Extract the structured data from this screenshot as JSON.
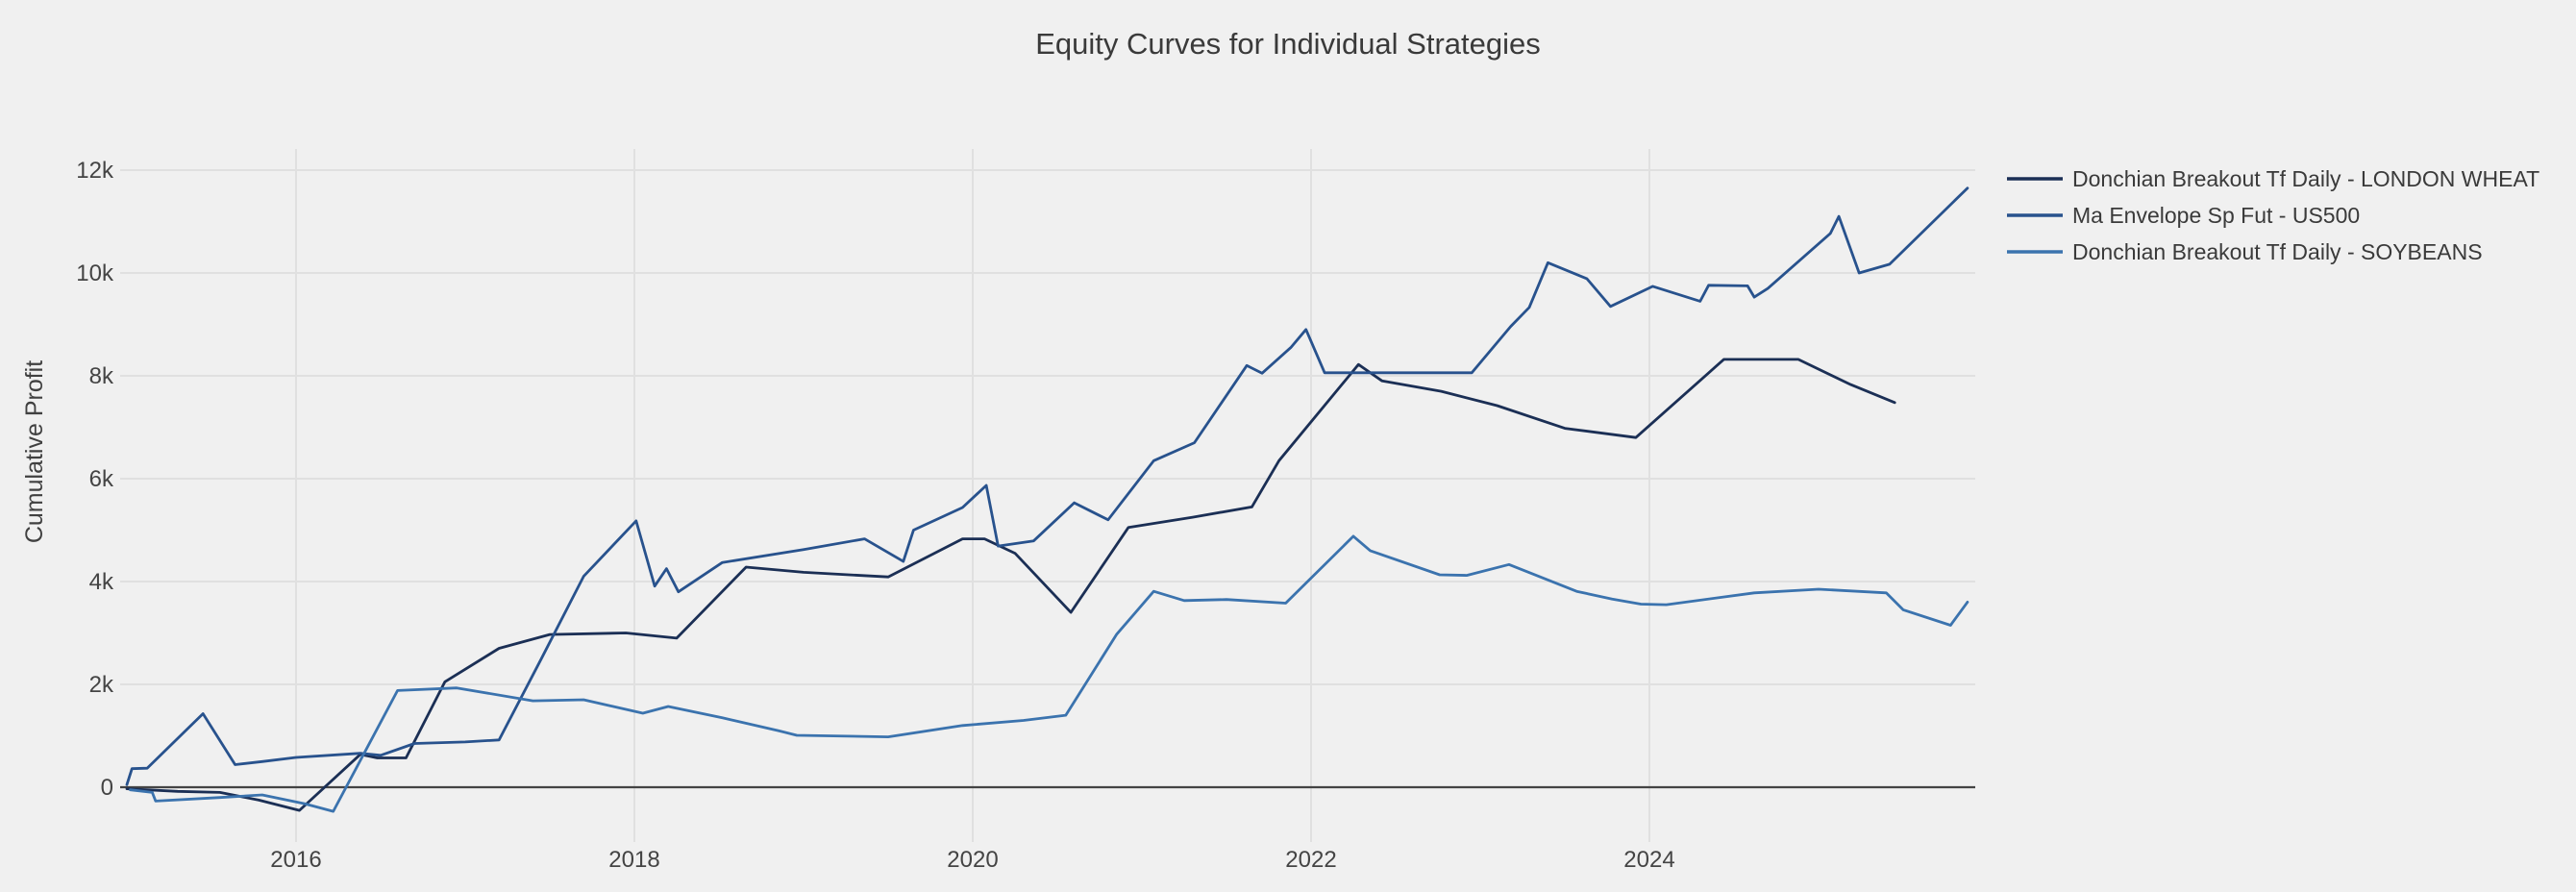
{
  "chart_data": {
    "type": "line",
    "title": "Equity Curves for Individual Strategies",
    "xlabel": "",
    "ylabel": "Cumulative Profit",
    "y_unit": "k",
    "x_range": [
      2014.96,
      2025.93
    ],
    "y_range_k": [
      -0.65,
      13.65
    ],
    "grid": "on",
    "legend_position": "top-right-outside",
    "background_color": "#F0F0F0",
    "gridline_color": "#E0E0E0",
    "zeroline_color": "#444444",
    "series": [
      {
        "id": "wheat",
        "name": "Donchian Breakout Tf Daily - LONDON WHEAT",
        "color": "#1B2F55",
        "points": [
          [
            2015.0,
            -0.03
          ],
          [
            2015.3,
            -0.08
          ],
          [
            2015.55,
            -0.1
          ],
          [
            2015.78,
            -0.25
          ],
          [
            2016.02,
            -0.45
          ],
          [
            2016.38,
            0.64
          ],
          [
            2016.48,
            0.57
          ],
          [
            2016.65,
            0.57
          ],
          [
            2016.88,
            2.05
          ],
          [
            2017.2,
            2.7
          ],
          [
            2017.5,
            2.97
          ],
          [
            2017.95,
            3.0
          ],
          [
            2018.25,
            2.9
          ],
          [
            2018.66,
            4.28
          ],
          [
            2019.0,
            4.18
          ],
          [
            2019.5,
            4.09
          ],
          [
            2019.94,
            4.83
          ],
          [
            2020.07,
            4.83
          ],
          [
            2020.25,
            4.55
          ],
          [
            2020.58,
            3.4
          ],
          [
            2020.92,
            5.05
          ],
          [
            2021.3,
            5.25
          ],
          [
            2021.65,
            5.45
          ],
          [
            2021.81,
            6.35
          ],
          [
            2022.28,
            8.22
          ],
          [
            2022.42,
            7.9
          ],
          [
            2022.77,
            7.7
          ],
          [
            2023.1,
            7.42
          ],
          [
            2023.5,
            6.98
          ],
          [
            2023.92,
            6.8
          ],
          [
            2024.44,
            8.32
          ],
          [
            2024.88,
            8.32
          ],
          [
            2025.19,
            7.83
          ],
          [
            2025.45,
            7.48
          ]
        ]
      },
      {
        "id": "us500",
        "name": "Ma Envelope Sp Fut - US500",
        "color": "#28528D",
        "points": [
          [
            2015.0,
            0.05
          ],
          [
            2015.03,
            0.36
          ],
          [
            2015.12,
            0.37
          ],
          [
            2015.45,
            1.43
          ],
          [
            2015.64,
            0.44
          ],
          [
            2015.8,
            0.5
          ],
          [
            2016.0,
            0.58
          ],
          [
            2016.38,
            0.66
          ],
          [
            2016.5,
            0.62
          ],
          [
            2016.7,
            0.85
          ],
          [
            2017.0,
            0.88
          ],
          [
            2017.2,
            0.92
          ],
          [
            2017.45,
            2.5
          ],
          [
            2017.7,
            4.1
          ],
          [
            2018.01,
            5.18
          ],
          [
            2018.12,
            3.91
          ],
          [
            2018.19,
            4.25
          ],
          [
            2018.26,
            3.8
          ],
          [
            2018.52,
            4.37
          ],
          [
            2019.0,
            4.62
          ],
          [
            2019.36,
            4.83
          ],
          [
            2019.59,
            4.39
          ],
          [
            2019.65,
            5.0
          ],
          [
            2019.94,
            5.44
          ],
          [
            2020.08,
            5.87
          ],
          [
            2020.15,
            4.69
          ],
          [
            2020.36,
            4.79
          ],
          [
            2020.6,
            5.53
          ],
          [
            2020.8,
            5.2
          ],
          [
            2021.07,
            6.35
          ],
          [
            2021.31,
            6.7
          ],
          [
            2021.62,
            8.2
          ],
          [
            2021.71,
            8.05
          ],
          [
            2021.88,
            8.55
          ],
          [
            2021.97,
            8.9
          ],
          [
            2022.08,
            8.06
          ],
          [
            2022.95,
            8.06
          ],
          [
            2023.18,
            8.96
          ],
          [
            2023.29,
            9.33
          ],
          [
            2023.4,
            10.2
          ],
          [
            2023.63,
            9.89
          ],
          [
            2023.77,
            9.35
          ],
          [
            2024.02,
            9.74
          ],
          [
            2024.3,
            9.45
          ],
          [
            2024.35,
            9.76
          ],
          [
            2024.58,
            9.75
          ],
          [
            2024.62,
            9.53
          ],
          [
            2024.7,
            9.7
          ],
          [
            2025.07,
            10.77
          ],
          [
            2025.12,
            11.1
          ],
          [
            2025.24,
            10.0
          ],
          [
            2025.42,
            10.17
          ],
          [
            2025.88,
            11.65
          ]
        ]
      },
      {
        "id": "soybeans",
        "name": "Donchian Breakout Tf Daily - SOYBEANS",
        "color": "#3B73AE",
        "points": [
          [
            2015.02,
            -0.05
          ],
          [
            2015.15,
            -0.1
          ],
          [
            2015.17,
            -0.27
          ],
          [
            2015.55,
            -0.2
          ],
          [
            2015.8,
            -0.15
          ],
          [
            2016.05,
            -0.32
          ],
          [
            2016.22,
            -0.47
          ],
          [
            2016.6,
            1.88
          ],
          [
            2016.95,
            1.93
          ],
          [
            2017.4,
            1.68
          ],
          [
            2017.7,
            1.7
          ],
          [
            2018.05,
            1.44
          ],
          [
            2018.2,
            1.57
          ],
          [
            2018.52,
            1.35
          ],
          [
            2018.85,
            1.1
          ],
          [
            2018.96,
            1.01
          ],
          [
            2019.5,
            0.98
          ],
          [
            2019.94,
            1.2
          ],
          [
            2020.3,
            1.3
          ],
          [
            2020.55,
            1.4
          ],
          [
            2020.85,
            2.97
          ],
          [
            2021.07,
            3.81
          ],
          [
            2021.25,
            3.63
          ],
          [
            2021.5,
            3.65
          ],
          [
            2021.85,
            3.58
          ],
          [
            2022.25,
            4.88
          ],
          [
            2022.35,
            4.6
          ],
          [
            2022.76,
            4.13
          ],
          [
            2022.92,
            4.12
          ],
          [
            2023.17,
            4.33
          ],
          [
            2023.57,
            3.81
          ],
          [
            2023.78,
            3.66
          ],
          [
            2023.95,
            3.56
          ],
          [
            2024.1,
            3.55
          ],
          [
            2024.62,
            3.78
          ],
          [
            2025.0,
            3.85
          ],
          [
            2025.4,
            3.78
          ],
          [
            2025.5,
            3.45
          ],
          [
            2025.78,
            3.15
          ],
          [
            2025.88,
            3.6
          ]
        ]
      }
    ]
  },
  "axes": {
    "y_ticks": [
      {
        "label": "0",
        "value": 0
      },
      {
        "label": "2k",
        "value": 2
      },
      {
        "label": "4k",
        "value": 4
      },
      {
        "label": "6k",
        "value": 6
      },
      {
        "label": "8k",
        "value": 8
      },
      {
        "label": "10k",
        "value": 10
      },
      {
        "label": "12k",
        "value": 12
      }
    ],
    "x_ticks": [
      {
        "label": "2016",
        "value": 2016
      },
      {
        "label": "2018",
        "value": 2018
      },
      {
        "label": "2020",
        "value": 2020
      },
      {
        "label": "2022",
        "value": 2022
      },
      {
        "label": "2024",
        "value": 2024
      }
    ]
  }
}
